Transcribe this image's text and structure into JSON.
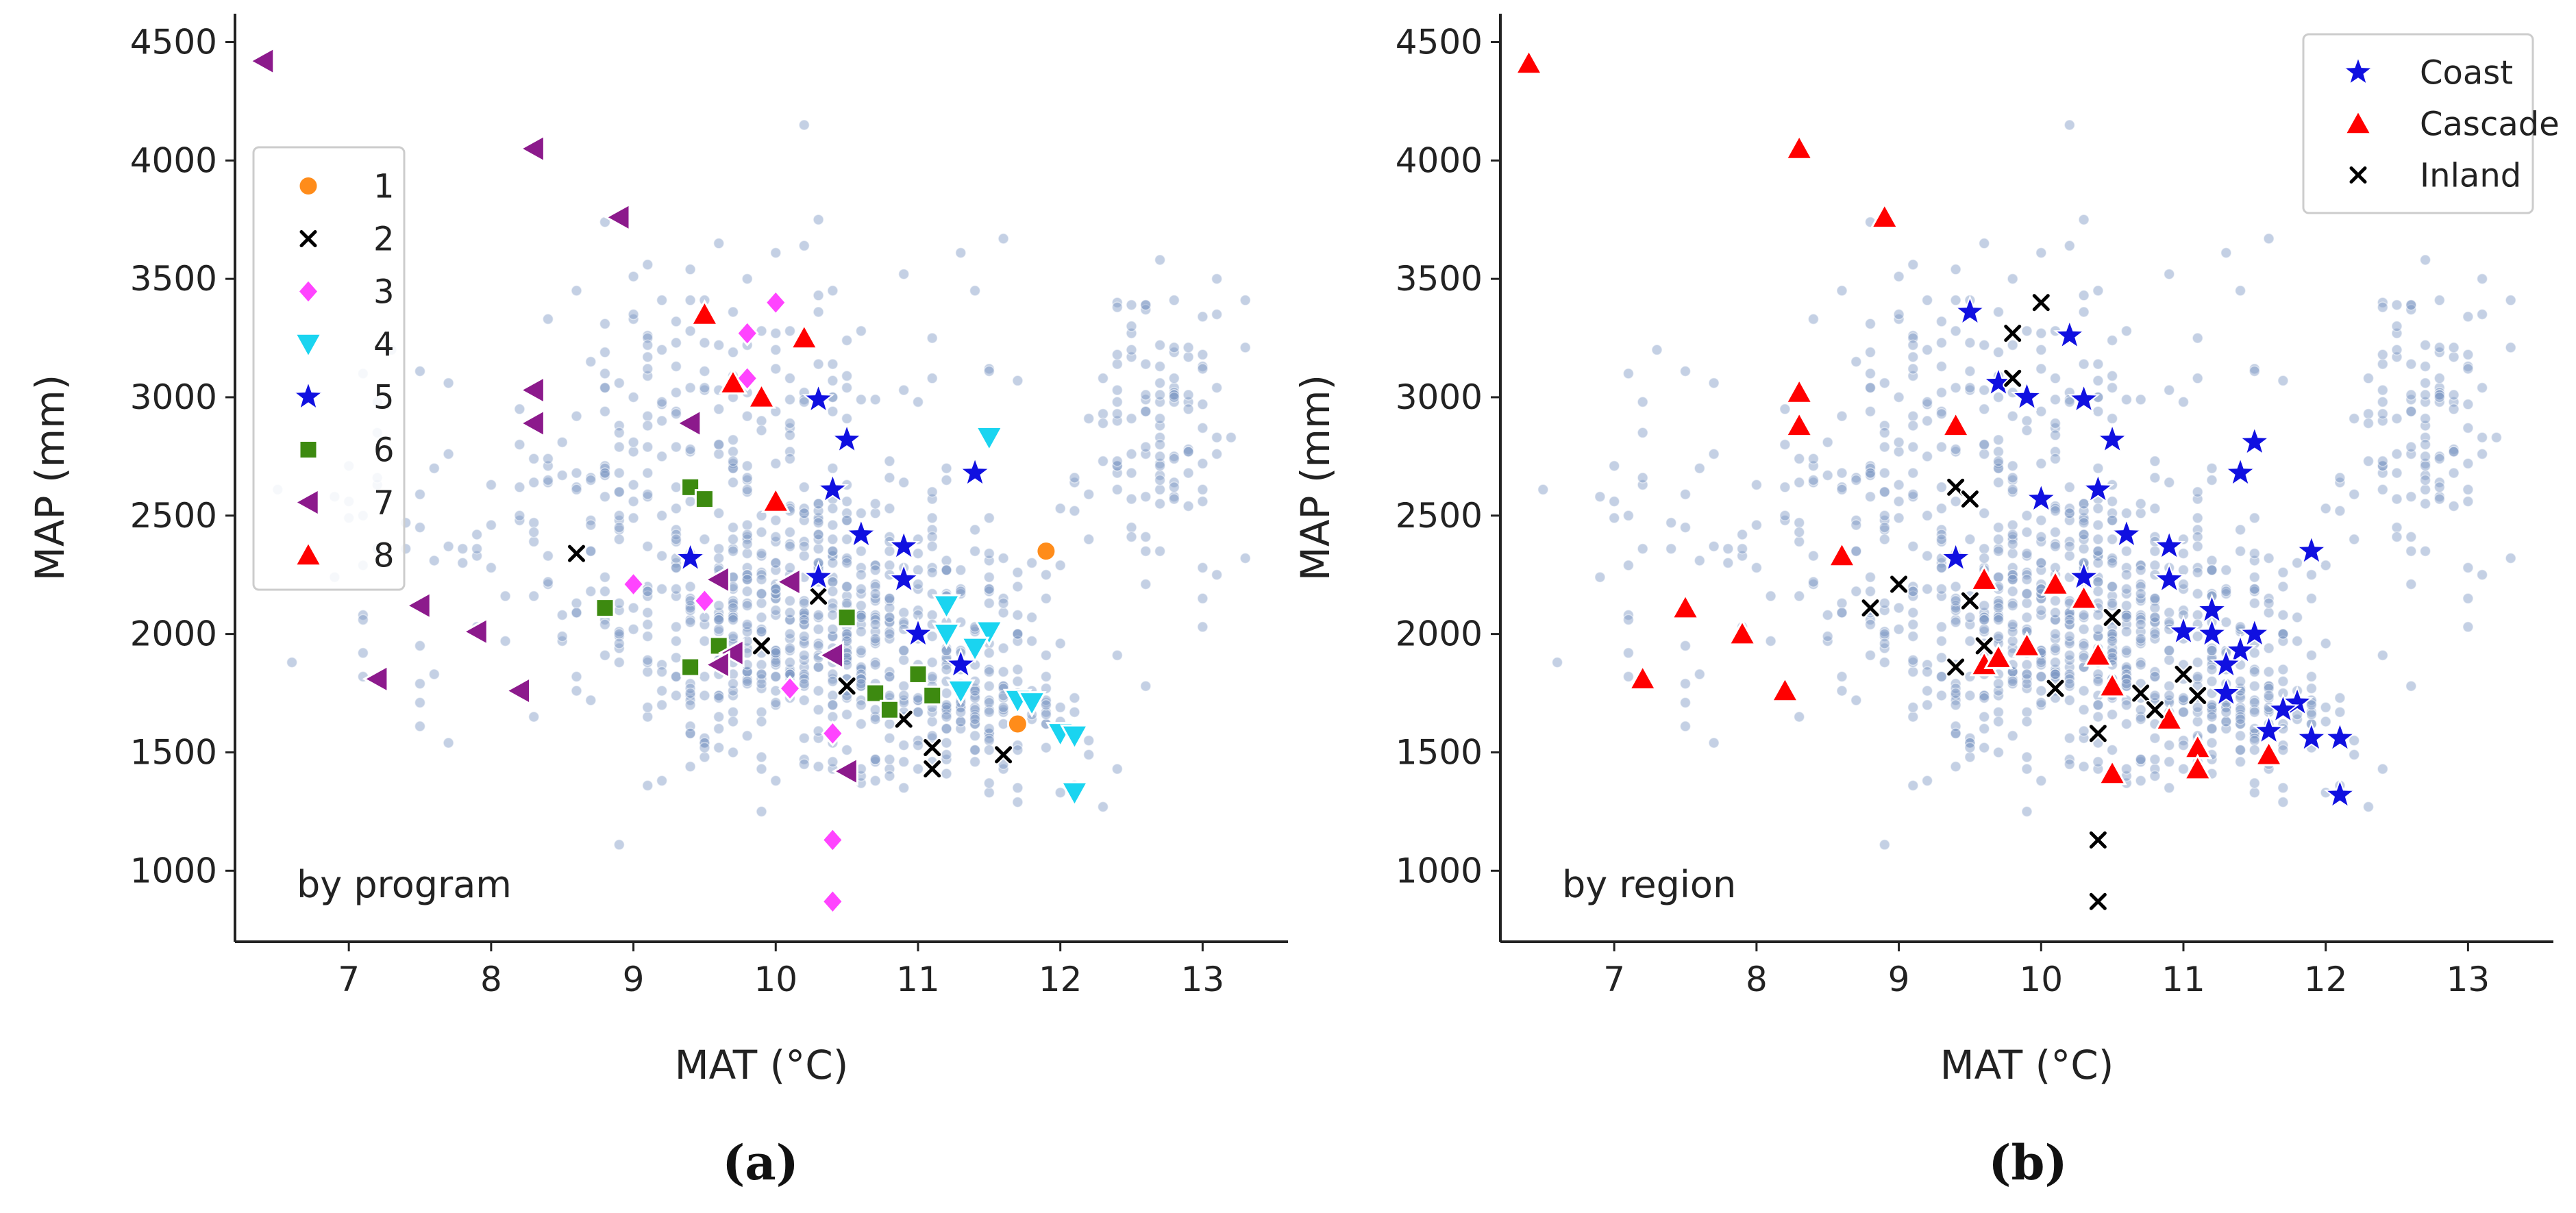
{
  "captions": [
    "(a)",
    "(b)"
  ],
  "chart_data": [
    {
      "type": "scatter",
      "panel": "a",
      "xlabel": "MAT (°C)",
      "ylabel": "MAP (mm)",
      "xlim": [
        6.2,
        13.6
      ],
      "ylim": [
        700,
        4620
      ],
      "xticks": [
        7,
        8,
        9,
        10,
        11,
        12,
        13
      ],
      "yticks": [
        1000,
        1500,
        2000,
        2500,
        3000,
        3500,
        4000,
        4500
      ],
      "annotation": "by program",
      "legend_position": "upper-left",
      "background_points_color": "#7d96c4",
      "series": [
        {
          "name": "1",
          "marker": "circle",
          "color": "#ff8c1a",
          "points": [
            [
              11.9,
              2350
            ],
            [
              11.7,
              1620
            ]
          ]
        },
        {
          "name": "2",
          "marker": "x",
          "color": "#000000",
          "points": [
            [
              8.6,
              2340
            ],
            [
              9.9,
              1950
            ],
            [
              10.3,
              2160
            ],
            [
              10.5,
              1780
            ],
            [
              10.9,
              1640
            ],
            [
              11.1,
              1520
            ],
            [
              11.1,
              1430
            ],
            [
              11.6,
              1490
            ]
          ]
        },
        {
          "name": "3",
          "marker": "diamond",
          "color": "#ff44ff",
          "points": [
            [
              9.0,
              2210
            ],
            [
              9.5,
              2140
            ],
            [
              9.8,
              3270
            ],
            [
              9.8,
              3080
            ],
            [
              10.0,
              3400
            ],
            [
              10.1,
              1770
            ],
            [
              10.4,
              1580
            ],
            [
              10.4,
              1130
            ],
            [
              10.4,
              870
            ]
          ]
        },
        {
          "name": "4",
          "marker": "triangle-down",
          "color": "#1ad4f0",
          "points": [
            [
              11.5,
              2830
            ],
            [
              11.2,
              2120
            ],
            [
              11.2,
              2000
            ],
            [
              11.5,
              2010
            ],
            [
              11.4,
              1940
            ],
            [
              11.3,
              1760
            ],
            [
              11.7,
              1720
            ],
            [
              11.8,
              1710
            ],
            [
              12.0,
              1580
            ],
            [
              12.1,
              1570
            ],
            [
              12.1,
              1330
            ]
          ]
        },
        {
          "name": "5",
          "marker": "star",
          "color": "#1010e0",
          "points": [
            [
              10.3,
              2990
            ],
            [
              10.5,
              2820
            ],
            [
              10.4,
              2610
            ],
            [
              10.6,
              2420
            ],
            [
              9.4,
              2320
            ],
            [
              10.3,
              2240
            ],
            [
              10.9,
              2370
            ],
            [
              10.9,
              2230
            ],
            [
              11.4,
              2680
            ],
            [
              11.0,
              2000
            ],
            [
              11.3,
              1870
            ]
          ]
        },
        {
          "name": "6",
          "marker": "square",
          "color": "#3d8a10",
          "points": [
            [
              9.4,
              2620
            ],
            [
              9.5,
              2570
            ],
            [
              8.8,
              2110
            ],
            [
              10.5,
              2070
            ],
            [
              9.6,
              1950
            ],
            [
              9.4,
              1860
            ],
            [
              10.7,
              1750
            ],
            [
              10.8,
              1680
            ],
            [
              11.0,
              1830
            ],
            [
              11.1,
              1740
            ]
          ]
        },
        {
          "name": "7",
          "marker": "triangle-left",
          "color": "#8c1a8c",
          "points": [
            [
              6.4,
              4420
            ],
            [
              8.3,
              4050
            ],
            [
              8.9,
              3760
            ],
            [
              8.3,
              3030
            ],
            [
              8.3,
              2890
            ],
            [
              9.4,
              2890
            ],
            [
              7.5,
              2120
            ],
            [
              7.9,
              2010
            ],
            [
              7.2,
              1810
            ],
            [
              8.2,
              1760
            ],
            [
              9.6,
              2230
            ],
            [
              10.1,
              2220
            ],
            [
              9.7,
              1920
            ],
            [
              9.6,
              1870
            ],
            [
              10.4,
              1910
            ],
            [
              10.5,
              1420
            ]
          ]
        },
        {
          "name": "8",
          "marker": "triangle-up",
          "color": "#ff0000",
          "points": [
            [
              9.5,
              3350
            ],
            [
              10.2,
              3250
            ],
            [
              9.7,
              3060
            ],
            [
              9.9,
              3000
            ],
            [
              10.0,
              2560
            ]
          ]
        }
      ]
    },
    {
      "type": "scatter",
      "panel": "b",
      "xlabel": "MAT (°C)",
      "ylabel": "MAP (mm)",
      "xlim": [
        6.2,
        13.6
      ],
      "ylim": [
        700,
        4620
      ],
      "xticks": [
        7,
        8,
        9,
        10,
        11,
        12,
        13
      ],
      "yticks": [
        1000,
        1500,
        2000,
        2500,
        3000,
        3500,
        4000,
        4500
      ],
      "annotation": "by region",
      "legend_position": "upper-right",
      "background_points_color": "#7d96c4",
      "series": [
        {
          "name": "Coast",
          "marker": "star",
          "color": "#1010e0",
          "points": [
            [
              9.5,
              3360
            ],
            [
              10.2,
              3260
            ],
            [
              9.7,
              3060
            ],
            [
              9.9,
              3000
            ],
            [
              10.3,
              2990
            ],
            [
              10.5,
              2820
            ],
            [
              10.0,
              2570
            ],
            [
              10.4,
              2610
            ],
            [
              10.6,
              2420
            ],
            [
              9.4,
              2320
            ],
            [
              10.3,
              2240
            ],
            [
              10.9,
              2370
            ],
            [
              10.9,
              2230
            ],
            [
              11.4,
              2680
            ],
            [
              11.5,
              2810
            ],
            [
              11.9,
              2350
            ],
            [
              11.0,
              2010
            ],
            [
              11.2,
              2100
            ],
            [
              11.2,
              2000
            ],
            [
              11.5,
              2000
            ],
            [
              11.4,
              1930
            ],
            [
              11.3,
              1870
            ],
            [
              11.3,
              1750
            ],
            [
              11.8,
              1710
            ],
            [
              11.7,
              1680
            ],
            [
              11.6,
              1590
            ],
            [
              11.9,
              1560
            ],
            [
              12.1,
              1560
            ],
            [
              12.1,
              1320
            ]
          ]
        },
        {
          "name": "Cascade",
          "marker": "triangle-up",
          "color": "#ff0000",
          "points": [
            [
              6.4,
              4410
            ],
            [
              8.3,
              4050
            ],
            [
              8.9,
              3760
            ],
            [
              8.3,
              3020
            ],
            [
              8.3,
              2880
            ],
            [
              9.4,
              2880
            ],
            [
              8.6,
              2330
            ],
            [
              7.5,
              2110
            ],
            [
              7.9,
              2000
            ],
            [
              7.2,
              1810
            ],
            [
              8.2,
              1760
            ],
            [
              9.6,
              2230
            ],
            [
              10.1,
              2210
            ],
            [
              10.3,
              2150
            ],
            [
              9.6,
              1870
            ],
            [
              9.7,
              1900
            ],
            [
              9.9,
              1950
            ],
            [
              10.4,
              1910
            ],
            [
              10.5,
              1780
            ],
            [
              10.9,
              1640
            ],
            [
              11.1,
              1520
            ],
            [
              11.1,
              1430
            ],
            [
              10.5,
              1410
            ],
            [
              11.6,
              1490
            ]
          ]
        },
        {
          "name": "Inland",
          "marker": "x",
          "color": "#000000",
          "points": [
            [
              10.0,
              3400
            ],
            [
              9.8,
              3270
            ],
            [
              9.8,
              3080
            ],
            [
              9.4,
              2620
            ],
            [
              9.5,
              2570
            ],
            [
              8.8,
              2110
            ],
            [
              9.0,
              2210
            ],
            [
              9.5,
              2140
            ],
            [
              10.5,
              2070
            ],
            [
              9.6,
              1950
            ],
            [
              9.4,
              1860
            ],
            [
              10.1,
              1770
            ],
            [
              10.7,
              1750
            ],
            [
              10.8,
              1680
            ],
            [
              11.0,
              1830
            ],
            [
              11.1,
              1740
            ],
            [
              10.4,
              1580
            ],
            [
              10.4,
              1130
            ],
            [
              10.4,
              870
            ]
          ]
        }
      ]
    }
  ]
}
